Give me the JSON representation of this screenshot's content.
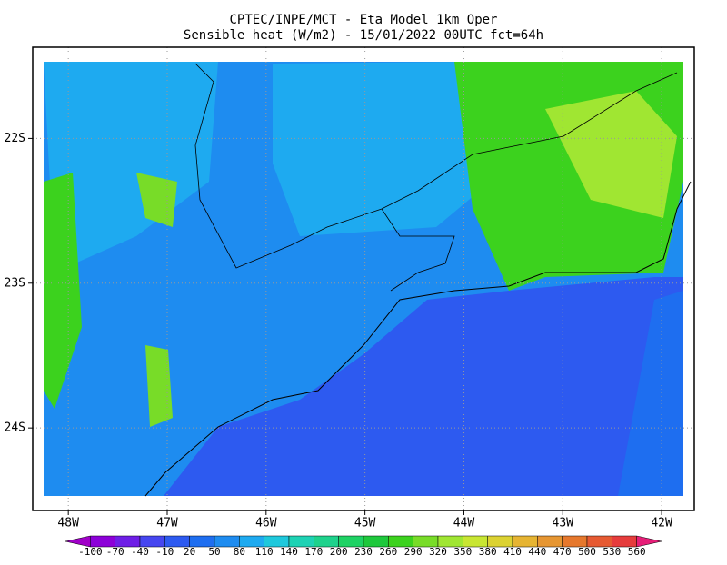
{
  "header": {
    "line1": "CPTEC/INPE/MCT -  Eta Model 1km Oper",
    "line2": "Sensible heat (W/m2) - 15/01/2022 00UTC fct=64h"
  },
  "map": {
    "lonlim": [
      -48.36,
      -41.67
    ],
    "latlim": [
      -24.57,
      -21.37
    ],
    "grid": true,
    "lon_ticks": [
      {
        "value": -48,
        "label": "48W"
      },
      {
        "value": -47,
        "label": "47W"
      },
      {
        "value": -46,
        "label": "46W"
      },
      {
        "value": -45,
        "label": "45W"
      },
      {
        "value": -44,
        "label": "44W"
      },
      {
        "value": -43,
        "label": "43W"
      },
      {
        "value": -42,
        "label": "42W"
      }
    ],
    "lat_ticks": [
      {
        "value": -22,
        "label": "22S"
      },
      {
        "value": -23,
        "label": "23S"
      },
      {
        "value": -24,
        "label": "24S"
      }
    ]
  },
  "colorbar": {
    "levels": [
      -100,
      -70,
      -40,
      -10,
      20,
      50,
      80,
      110,
      140,
      170,
      200,
      230,
      260,
      290,
      320,
      350,
      380,
      410,
      440,
      470,
      500,
      530,
      560
    ],
    "colors": [
      "#a000c8",
      "#8c00d8",
      "#6e1ee6",
      "#4646f0",
      "#2d5af0",
      "#1e6ef0",
      "#1e8cf0",
      "#1eaaf0",
      "#1ec8dc",
      "#1ed2b4",
      "#1ed28c",
      "#1ed264",
      "#1ec83c",
      "#3cd21e",
      "#78dc28",
      "#a0e632",
      "#c8e632",
      "#dcd232",
      "#e6b432",
      "#e69632",
      "#e6782d",
      "#e65a32",
      "#e63c3c",
      "#e61e78"
    ]
  }
}
